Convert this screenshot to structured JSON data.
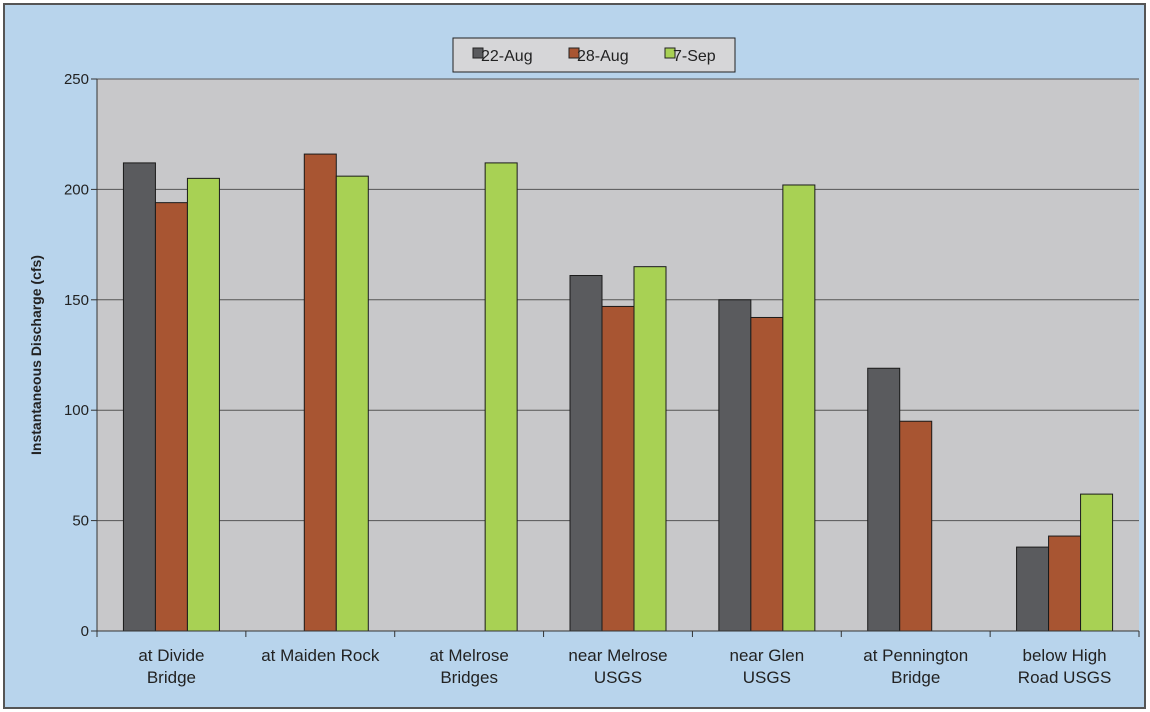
{
  "chart_data": {
    "type": "bar",
    "title": "",
    "xlabel": "",
    "ylabel": "Instantaneous Discharge (cfs)",
    "ylim": [
      0,
      250
    ],
    "yticks": [
      0,
      50,
      100,
      150,
      200,
      250
    ],
    "grid": true,
    "legend_position": "top-center",
    "categories": [
      [
        "at Divide",
        "Bridge"
      ],
      [
        "at Maiden Rock"
      ],
      [
        "at Melrose",
        "Bridges"
      ],
      [
        "near Melrose",
        "USGS"
      ],
      [
        "near Glen",
        "USGS"
      ],
      [
        "at Pennington",
        "Bridge"
      ],
      [
        "below High",
        "Road USGS"
      ]
    ],
    "series": [
      {
        "name": "22-Aug",
        "color": "#5a5b5e",
        "values": [
          212,
          null,
          null,
          161,
          150,
          119,
          38
        ]
      },
      {
        "name": "28-Aug",
        "color": "#a85532",
        "values": [
          194,
          216,
          null,
          147,
          142,
          95,
          43
        ]
      },
      {
        "name": "7-Sep",
        "color": "#a8d154",
        "values": [
          205,
          206,
          212,
          165,
          202,
          null,
          62
        ]
      }
    ],
    "colors": {
      "outer_background": "#b8d4ec",
      "plot_background": "#c8c8ca",
      "gridline": "#555555"
    }
  }
}
